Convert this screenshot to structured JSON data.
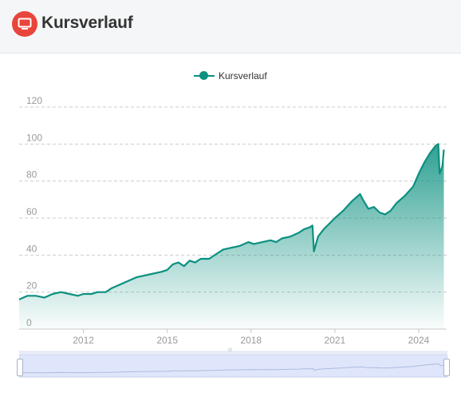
{
  "header": {
    "title": "Kursverlauf",
    "icon": "monitor-icon",
    "icon_color": "#e8453c"
  },
  "legend": {
    "label": "Kursverlauf"
  },
  "colors": {
    "line": "#0b9080",
    "area_top": "#0b9080",
    "slider_fill": "#dfe6fb"
  },
  "slider": {
    "handle_label": "III"
  },
  "chart_data": {
    "type": "area",
    "title": "",
    "xlabel": "",
    "ylabel": "",
    "ylim": [
      0,
      120
    ],
    "xlim": [
      2009.7,
      2025.0
    ],
    "y_ticks": [
      "0",
      "20",
      "40",
      "60",
      "80",
      "100",
      "120"
    ],
    "x_ticks": [
      "2012",
      "2015",
      "2018",
      "2021",
      "2024"
    ],
    "grid": true,
    "legend_position": "top-center",
    "series": [
      {
        "name": "Kursverlauf",
        "x": [
          2009.7,
          2010.0,
          2010.3,
          2010.6,
          2010.9,
          2011.2,
          2011.5,
          2011.8,
          2012.0,
          2012.3,
          2012.5,
          2012.8,
          2013.0,
          2013.3,
          2013.6,
          2013.9,
          2014.2,
          2014.5,
          2014.8,
          2015.0,
          2015.2,
          2015.4,
          2015.6,
          2015.8,
          2016.0,
          2016.2,
          2016.5,
          2016.8,
          2017.0,
          2017.3,
          2017.6,
          2017.9,
          2018.1,
          2018.4,
          2018.7,
          2018.9,
          2019.1,
          2019.4,
          2019.7,
          2019.9,
          2020.1,
          2020.2,
          2020.25,
          2020.4,
          2020.6,
          2020.8,
          2021.0,
          2021.3,
          2021.6,
          2021.9,
          2022.0,
          2022.2,
          2022.4,
          2022.6,
          2022.8,
          2023.0,
          2023.2,
          2023.5,
          2023.8,
          2024.0,
          2024.2,
          2024.4,
          2024.6,
          2024.7,
          2024.75,
          2024.85,
          2024.9
        ],
        "y": [
          16,
          18,
          18,
          17,
          19,
          20,
          19,
          18,
          19,
          19,
          20,
          20,
          22,
          24,
          26,
          28,
          29,
          30,
          31,
          32,
          35,
          36,
          34,
          37,
          36,
          38,
          38,
          41,
          43,
          44,
          45,
          47,
          46,
          47,
          48,
          47,
          49,
          50,
          52,
          54,
          55,
          56,
          42,
          50,
          54,
          57,
          60,
          64,
          69,
          73,
          70,
          65,
          66,
          63,
          62,
          64,
          68,
          72,
          77,
          84,
          90,
          95,
          99,
          100,
          84,
          88,
          97
        ]
      }
    ]
  }
}
